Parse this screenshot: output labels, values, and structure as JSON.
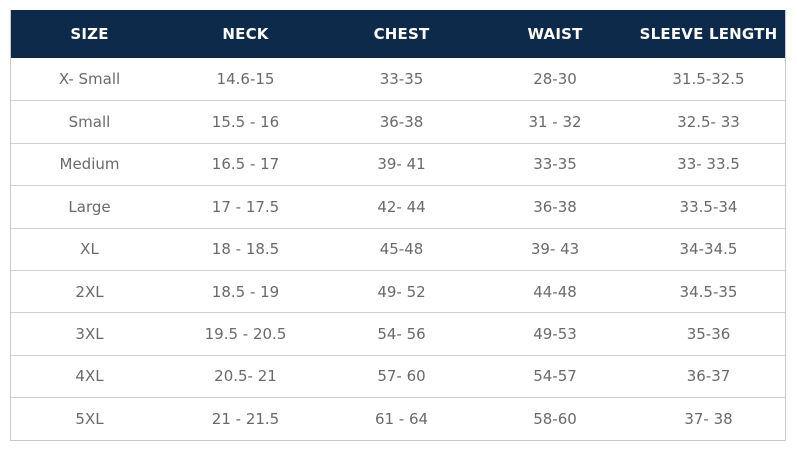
{
  "colors": {
    "header_bg": "#0e2a4b",
    "header_text": "#ffffff",
    "cell_text": "#6a6a6a"
  },
  "headers": [
    "SIZE",
    "NECK",
    "CHEST",
    "WAIST",
    "SLEEVE LENGTH"
  ],
  "rows": [
    [
      "X- Small",
      "14.6-15",
      "33-35",
      "28-30",
      "31.5-32.5"
    ],
    [
      "Small",
      "15.5 - 16",
      "36-38",
      "31 - 32",
      "32.5- 33"
    ],
    [
      "Medium",
      "16.5 - 17",
      "39- 41",
      "33-35",
      "33- 33.5"
    ],
    [
      "Large",
      "17 - 17.5",
      "42- 44",
      "36-38",
      "33.5-34"
    ],
    [
      "XL",
      "18 - 18.5",
      "45-48",
      "39- 43",
      "34-34.5"
    ],
    [
      "2XL",
      "18.5 - 19",
      "49- 52",
      "44-48",
      "34.5-35"
    ],
    [
      "3XL",
      "19.5 - 20.5",
      "54- 56",
      "49-53",
      "35-36"
    ],
    [
      "4XL",
      "20.5- 21",
      "57- 60",
      "54-57",
      "36-37"
    ],
    [
      "5XL",
      "21 - 21.5",
      "61 - 64",
      "58-60",
      "37- 38"
    ]
  ]
}
